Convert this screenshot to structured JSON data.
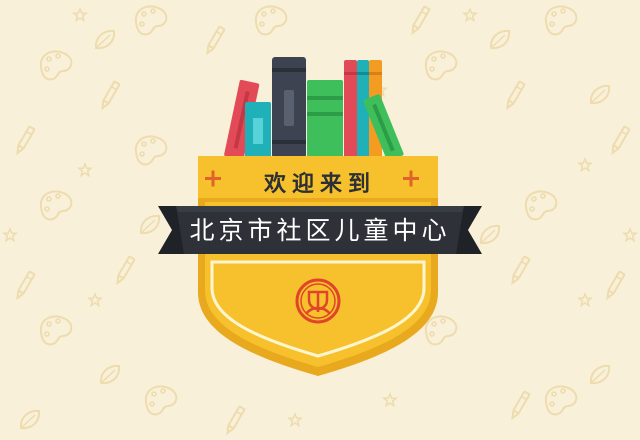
{
  "banner": {
    "welcome_text": "欢迎来到",
    "center_name": "北京市社区儿童中心"
  },
  "colors": {
    "background": "#f8f0d8",
    "pattern": "#eedcae",
    "shield_yellow": "#f6c12c",
    "shield_dark_yellow": "#e9a91f",
    "ribbon": "#2e3238",
    "logo_red": "#e0452a"
  },
  "icons": [
    "paint-palette-icon",
    "crayon-icon",
    "leaf-icon",
    "star-icon",
    "plus-icon",
    "logo-icon"
  ],
  "books": [
    "red",
    "teal",
    "dark-gray",
    "green",
    "red",
    "teal",
    "orange",
    "green"
  ]
}
